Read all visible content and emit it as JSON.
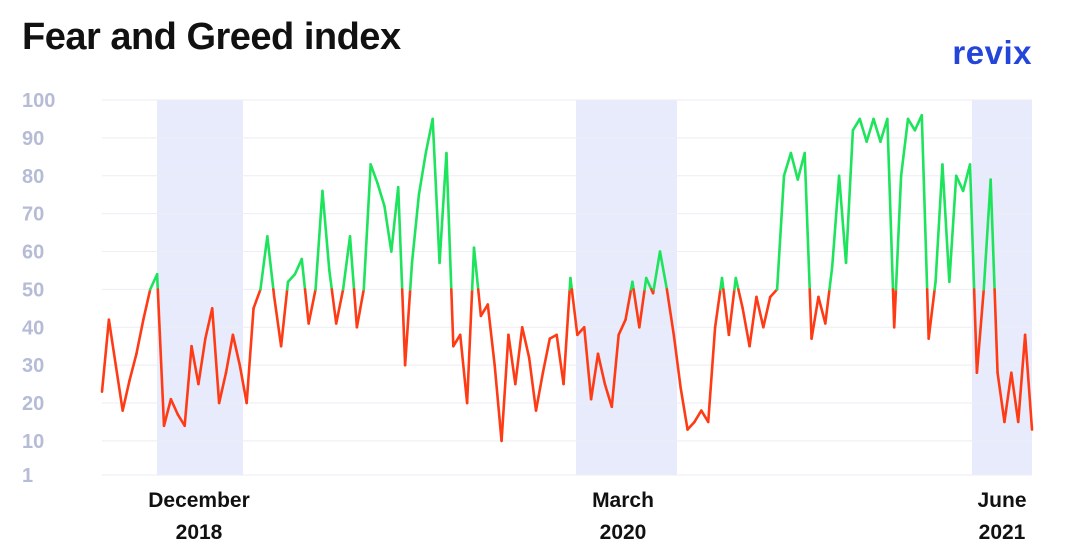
{
  "header": {
    "title": "Fear and Greed index",
    "brand": "revix"
  },
  "colors": {
    "greed": "#1ee35c",
    "fear": "#ff3b16",
    "band": "#e8ebfb",
    "grid": "#eceef4",
    "tick": "#b7bcd6",
    "brand": "#2445d9"
  },
  "chart_data": {
    "type": "line",
    "title": "Fear and Greed index",
    "xlabel": "",
    "ylabel": "",
    "ylim": [
      1,
      100
    ],
    "yticks": [
      1,
      10,
      20,
      30,
      40,
      50,
      60,
      70,
      80,
      90,
      100
    ],
    "grid": true,
    "threshold": 50,
    "highlight_periods": [
      "December 2018",
      "March 2020",
      "June 2021"
    ],
    "x_labels": [
      {
        "month": "December",
        "year": "2018"
      },
      {
        "month": "March",
        "year": "2020"
      },
      {
        "month": "June",
        "year": "2021"
      }
    ],
    "series": [
      {
        "values": [
          23,
          42,
          30,
          18,
          26,
          33,
          42,
          50,
          54,
          14,
          21,
          17,
          14,
          35,
          25,
          37,
          45,
          20,
          28,
          38,
          30,
          20,
          45,
          50,
          64,
          48,
          35,
          52,
          54,
          58,
          41,
          50,
          76,
          55,
          41,
          50,
          64,
          40,
          50,
          83,
          78,
          72,
          60,
          77,
          30,
          57,
          75,
          86,
          95,
          57,
          86,
          35,
          38,
          20,
          61,
          43,
          46,
          30,
          10,
          38,
          25,
          40,
          32,
          18,
          28,
          37,
          38,
          25,
          53,
          38,
          40,
          21,
          33,
          25,
          19,
          38,
          42,
          52,
          40,
          53,
          49,
          60,
          50,
          38,
          24,
          13,
          15,
          18,
          15,
          40,
          53,
          38,
          53,
          45,
          35,
          48,
          40,
          48,
          50,
          80,
          86,
          79,
          86,
          37,
          48,
          41,
          56,
          80,
          57,
          92,
          95,
          89,
          95,
          89,
          95,
          40,
          80,
          95,
          92,
          96,
          37,
          52,
          83,
          52,
          80,
          76,
          83,
          28,
          50,
          79,
          28,
          15,
          28,
          15,
          38,
          13
        ]
      }
    ]
  }
}
